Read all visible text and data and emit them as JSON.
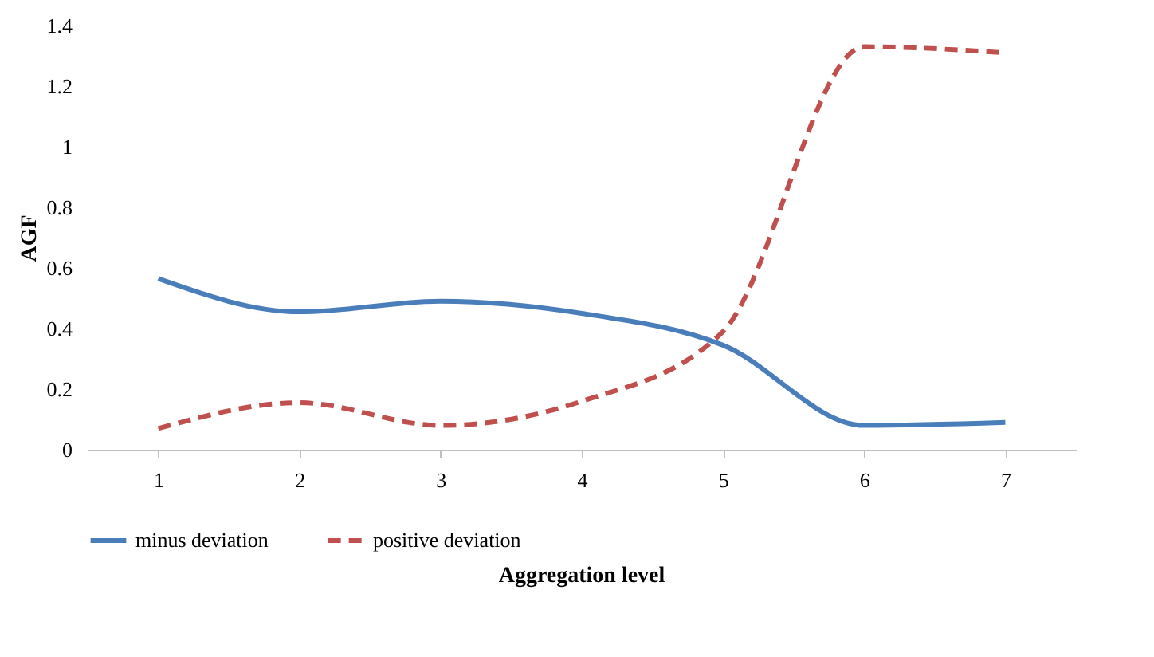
{
  "chart_data": {
    "type": "line",
    "xlabel": "Aggregation level",
    "ylabel": "AGF",
    "categories": [
      "1",
      "2",
      "3",
      "4",
      "5",
      "6",
      "7"
    ],
    "series": [
      {
        "name": "minus deviation",
        "color": "#4a7ebb",
        "line_style": "solid",
        "values": [
          0.565,
          0.455,
          0.49,
          0.45,
          0.345,
          0.08,
          0.09
        ]
      },
      {
        "name": "positive deviation",
        "color": "#c0504d",
        "line_style": "dashed",
        "values": [
          0.07,
          0.155,
          0.08,
          0.16,
          0.39,
          1.33,
          1.31
        ]
      }
    ],
    "ylim": [
      0,
      1.4
    ],
    "yticks": [
      0,
      0.2,
      0.4,
      0.6,
      0.8,
      1,
      1.2,
      1.4
    ],
    "grid": false,
    "legend": "bottom",
    "marker": "none"
  }
}
